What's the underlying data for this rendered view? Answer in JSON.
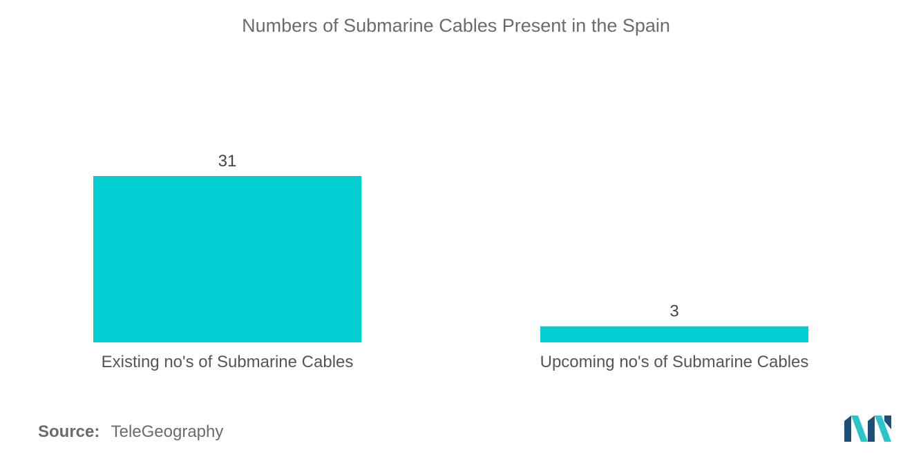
{
  "chart_data": {
    "type": "bar",
    "title": "Numbers of Submarine Cables Present in the Spain",
    "categories": [
      "Existing no's of Submarine Cables",
      "Upcoming no's of Submarine Cables"
    ],
    "values": [
      31,
      3
    ],
    "data_labels": [
      "31",
      "3"
    ],
    "xlabel": "",
    "ylabel": "",
    "ylim": [
      0,
      31
    ],
    "grid": false,
    "legend": "none",
    "bar_color": "#00CED1"
  },
  "source": {
    "label": "Source:",
    "value": "TeleGeography"
  },
  "colors": {
    "title_text": "#6b6b6b",
    "label_text": "#555555",
    "logo_dark": "#1f4e79",
    "logo_light": "#2ec4c9"
  },
  "logo": {
    "icon": "mordor-intelligence-logo"
  }
}
